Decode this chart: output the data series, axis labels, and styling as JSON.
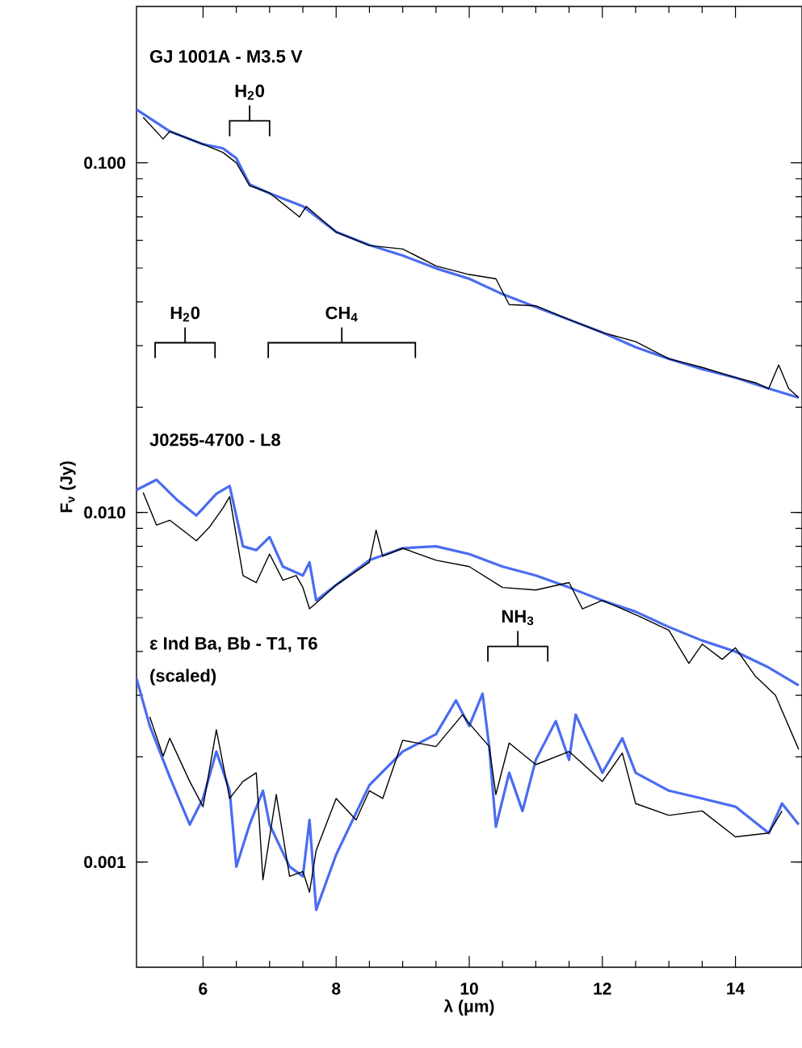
{
  "chart_data": {
    "type": "line",
    "xlabel": "λ (μm)",
    "ylabel": "F$_{ν}$ (Jy)",
    "log": true,
    "xlim": [
      5,
      15
    ],
    "xticks": [
      6,
      8,
      10,
      12,
      14
    ],
    "ylim": [
      0.0005,
      0.28
    ],
    "yticks": [
      0.001,
      {
        "value": 0.01,
        "label": "0.010"
      },
      {
        "value": 0.1,
        "label": "0.100"
      }
    ],
    "annotations": [
      "GJ 1001A - M3.5 V",
      "J0255-4700 - L8",
      "ε Ind Ba, Bb - T1, T6",
      "(scaled)",
      "H$_{2}$0",
      "H$_{2}$0",
      "CH$_{4}$",
      "NH$_{3}$"
    ],
    "series": [
      {
        "color": "#4a6cf0",
        "x": [
          5.0,
          5.5,
          6.0,
          6.3,
          6.5,
          6.7,
          7.0,
          7.5,
          8.0,
          8.5,
          9.0,
          9.5,
          10.0,
          10.5,
          11.0,
          11.5,
          12.0,
          12.5,
          13.0,
          13.5,
          14.0,
          14.5,
          14.95
        ],
        "values": [
          0.142,
          0.123,
          0.113,
          0.11,
          0.103,
          0.0867,
          0.0818,
          0.0751,
          0.0634,
          0.0582,
          0.0543,
          0.0499,
          0.0466,
          0.0421,
          0.0387,
          0.0356,
          0.0327,
          0.0297,
          0.0275,
          0.0257,
          0.0243,
          0.0226,
          0.0213
        ]
      },
      {
        "color": "#000000",
        "x": [
          5.1,
          5.4,
          5.5,
          6.0,
          6.3,
          6.5,
          6.7,
          7.0,
          7.45,
          7.55,
          8.0,
          8.5,
          9.0,
          9.5,
          10.0,
          10.4,
          10.6,
          11.0,
          11.5,
          12.0,
          12.5,
          13.0,
          13.5,
          14.0,
          14.3,
          14.5,
          14.65,
          14.8,
          14.95
        ],
        "values": [
          0.135,
          0.117,
          0.123,
          0.113,
          0.107,
          0.1,
          0.086,
          0.082,
          0.07,
          0.0751,
          0.0634,
          0.058,
          0.0567,
          0.0507,
          0.0479,
          0.0466,
          0.0393,
          0.039,
          0.0356,
          0.0327,
          0.0308,
          0.0275,
          0.026,
          0.0243,
          0.0235,
          0.0226,
          0.0264,
          0.0226,
          0.0213
        ]
      },
      {
        "color": "#4a6cf0",
        "x": [
          5.0,
          5.3,
          5.6,
          5.9,
          6.2,
          6.4,
          6.6,
          6.8,
          7.0,
          7.2,
          7.5,
          7.6,
          7.7,
          8.0,
          8.5,
          9.0,
          9.5,
          10.0,
          10.5,
          11.0,
          11.5,
          12.0,
          12.5,
          13.0,
          13.5,
          14.0,
          14.5,
          14.95
        ],
        "values": [
          0.0116,
          0.0124,
          0.0109,
          0.0098,
          0.0113,
          0.0119,
          0.008,
          0.0078,
          0.0085,
          0.007,
          0.0066,
          0.0072,
          0.0056,
          0.0062,
          0.0073,
          0.0079,
          0.008,
          0.0076,
          0.007,
          0.0066,
          0.0061,
          0.0056,
          0.0052,
          0.0047,
          0.0043,
          0.004,
          0.0036,
          0.0032
        ]
      },
      {
        "color": "#000000",
        "x": [
          5.1,
          5.3,
          5.5,
          5.9,
          6.1,
          6.3,
          6.4,
          6.6,
          6.8,
          7.0,
          7.2,
          7.4,
          7.5,
          7.6,
          7.7,
          8.0,
          8.5,
          8.6,
          8.7,
          9.0,
          9.5,
          10.0,
          10.5,
          11.0,
          11.5,
          11.7,
          12.0,
          12.5,
          13.0,
          13.3,
          13.5,
          13.8,
          14.0,
          14.3,
          14.6,
          14.95
        ],
        "values": [
          0.0114,
          0.0092,
          0.0095,
          0.0083,
          0.0091,
          0.0103,
          0.0111,
          0.0066,
          0.0063,
          0.0076,
          0.0064,
          0.0066,
          0.0061,
          0.0053,
          0.0055,
          0.0062,
          0.0072,
          0.0089,
          0.0075,
          0.0079,
          0.0073,
          0.007,
          0.0061,
          0.006,
          0.0063,
          0.0053,
          0.0056,
          0.0051,
          0.0046,
          0.0037,
          0.0042,
          0.0038,
          0.0041,
          0.0034,
          0.003,
          0.0021
        ]
      },
      {
        "color": "#4a6cf0",
        "x": [
          5.0,
          5.2,
          5.5,
          5.8,
          6.0,
          6.2,
          6.4,
          6.5,
          6.7,
          6.9,
          7.0,
          7.3,
          7.5,
          7.6,
          7.7,
          8.0,
          8.5,
          9.0,
          9.5,
          9.8,
          10.0,
          10.2,
          10.3,
          10.4,
          10.6,
          10.8,
          11.0,
          11.3,
          11.5,
          11.6,
          12.0,
          12.3,
          12.5,
          13.0,
          13.5,
          14.0,
          14.5,
          14.7,
          14.95
        ],
        "values": [
          0.00335,
          0.00245,
          0.00175,
          0.00128,
          0.00152,
          0.00207,
          0.0016,
          0.00097,
          0.00128,
          0.0016,
          0.00128,
          0.00097,
          0.00091,
          0.00132,
          0.00073,
          0.00105,
          0.00166,
          0.00207,
          0.00232,
          0.0029,
          0.00245,
          0.00303,
          0.00214,
          0.00126,
          0.0018,
          0.0014,
          0.00196,
          0.00253,
          0.00196,
          0.00264,
          0.0018,
          0.00226,
          0.0018,
          0.0016,
          0.00152,
          0.00144,
          0.00121,
          0.00147,
          0.00128
        ]
      },
      {
        "color": "#000000",
        "x": [
          5.2,
          5.4,
          5.5,
          5.8,
          6.0,
          6.2,
          6.4,
          6.6,
          6.8,
          6.9,
          7.1,
          7.3,
          7.5,
          7.6,
          7.7,
          8.0,
          8.3,
          8.5,
          8.7,
          9.0,
          9.5,
          9.9,
          10.0,
          10.3,
          10.4,
          10.6,
          11.0,
          11.5,
          12.0,
          12.3,
          12.5,
          13.0,
          13.5,
          14.0,
          14.5,
          14.7
        ],
        "values": [
          0.0026,
          0.00201,
          0.00226,
          0.0017,
          0.00144,
          0.00239,
          0.00152,
          0.0017,
          0.0018,
          0.00089,
          0.00156,
          0.00091,
          0.00094,
          0.00082,
          0.00108,
          0.00152,
          0.00132,
          0.0016,
          0.00152,
          0.00223,
          0.00214,
          0.00264,
          0.00249,
          0.00214,
          0.00156,
          0.00219,
          0.0019,
          0.00207,
          0.0017,
          0.00205,
          0.00147,
          0.00136,
          0.0014,
          0.00118,
          0.00121,
          0.0014
        ]
      }
    ]
  }
}
